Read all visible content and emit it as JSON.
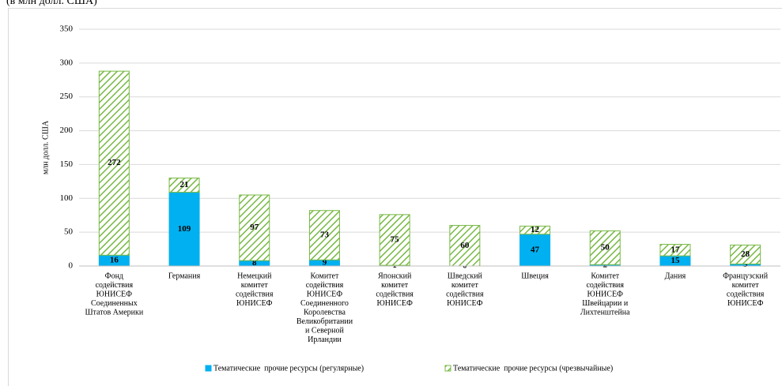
{
  "chart_data": {
    "type": "bar",
    "stacked": true,
    "subtitle": "(в млн долл. США)",
    "y_label": "млн долл. США",
    "categories": [
      [
        "Фонд",
        "содействия",
        "ЮНИСЕФ",
        "Соединенных",
        "Штатов Америки"
      ],
      [
        "Германия"
      ],
      [
        "Немецкий",
        "комитет",
        "содействия",
        "ЮНИСЕФ"
      ],
      [
        "Комитет",
        "содействия",
        "ЮНИСЕФ",
        "Соединенного",
        "Королевства",
        "Великобритании",
        "и Северной",
        "Ирландии"
      ],
      [
        "Японский",
        "комитет",
        "содействия",
        "ЮНИСЕФ"
      ],
      [
        "Шведский",
        "комитет",
        "содействия",
        "ЮНИСЕФ"
      ],
      [
        "Швеция"
      ],
      [
        "Комитет",
        "содействия",
        "ЮНИСЕФ",
        "Швейцарии и",
        "Лихтенштейна"
      ],
      [
        "Дания"
      ],
      [
        "Французский",
        "комитет",
        "содействия",
        "ЮНИСЕФ"
      ]
    ],
    "series": [
      {
        "name": "Тематические  прочие ресурсы (регулярные)",
        "color": "#00b0f0",
        "pattern": "solid",
        "values": [
          16,
          109,
          8,
          9,
          1,
          0,
          47,
          2,
          15,
          3
        ]
      },
      {
        "name": "Тематические  прочие ресурсы (чрезвычайные)",
        "color": "#77b843",
        "pattern": "hatch",
        "values": [
          272,
          21,
          97,
          73,
          75,
          60,
          12,
          50,
          17,
          28
        ]
      }
    ],
    "ylim": [
      0,
      350
    ],
    "yticks": [
      0,
      50,
      100,
      150,
      200,
      250,
      300,
      350
    ],
    "grid": true,
    "legend": "bottom"
  }
}
